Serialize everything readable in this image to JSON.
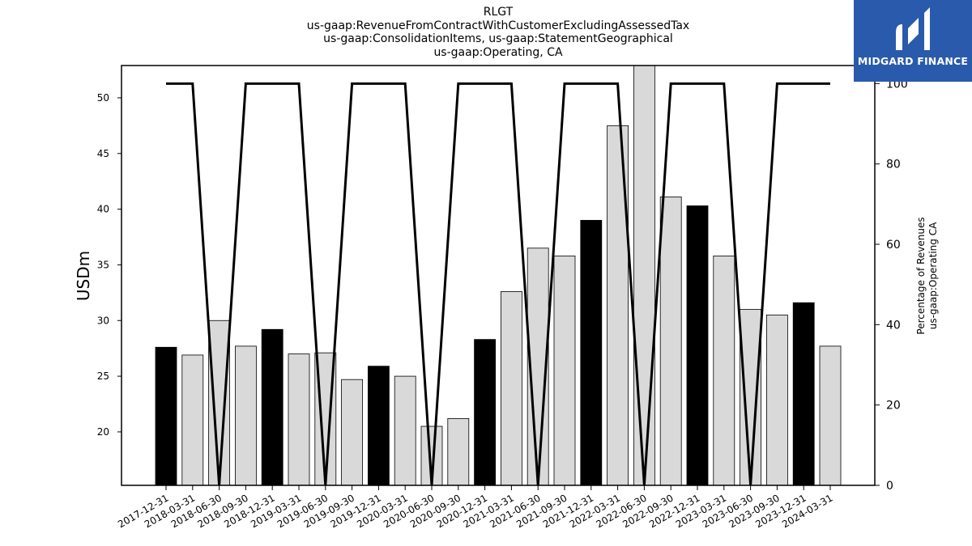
{
  "title": {
    "line1": "RLGT",
    "line2": "us-gaap:RevenueFromContractWithCustomerExcludingAssessedTax",
    "line3": "us-gaap:ConsolidationItems, us-gaap:StatementGeographical",
    "line4": "us-gaap:Operating, CA"
  },
  "logo": {
    "text": "MIDGARD FINANCE",
    "color": "#2a5aab"
  },
  "chart_data": {
    "type": "bar",
    "categories": [
      "2017-12-31",
      "2018-03-31",
      "2018-06-30",
      "2018-09-30",
      "2018-12-31",
      "2019-03-31",
      "2019-06-30",
      "2019-09-30",
      "2019-12-31",
      "2020-03-31",
      "2020-06-30",
      "2020-09-30",
      "2020-12-31",
      "2021-03-31",
      "2021-06-30",
      "2021-09-30",
      "2021-12-31",
      "2022-03-31",
      "2022-06-30",
      "2022-09-30",
      "2022-12-31",
      "2023-03-31",
      "2023-06-30",
      "2023-09-30",
      "2023-12-31",
      "2024-03-31"
    ],
    "values": [
      27.6,
      26.9,
      30.0,
      27.7,
      29.2,
      27.0,
      27.1,
      24.7,
      25.9,
      25.0,
      20.5,
      21.2,
      28.3,
      32.6,
      36.5,
      35.8,
      39.0,
      47.5,
      53.5,
      41.1,
      40.3,
      35.8,
      31.0,
      30.5,
      31.6,
      27.7
    ],
    "bar_colors": [
      "#000000",
      "#d9d9d9",
      "#d9d9d9",
      "#d9d9d9",
      "#000000",
      "#d9d9d9",
      "#d9d9d9",
      "#d9d9d9",
      "#000000",
      "#d9d9d9",
      "#d9d9d9",
      "#d9d9d9",
      "#000000",
      "#d9d9d9",
      "#d9d9d9",
      "#d9d9d9",
      "#000000",
      "#d9d9d9",
      "#d9d9d9",
      "#d9d9d9",
      "#000000",
      "#d9d9d9",
      "#d9d9d9",
      "#d9d9d9",
      "#000000",
      "#d9d9d9"
    ],
    "line_values": [
      100,
      100,
      0,
      100,
      100,
      100,
      0,
      100,
      100,
      100,
      0,
      100,
      100,
      100,
      0,
      100,
      100,
      100,
      0,
      100,
      100,
      100,
      0,
      100,
      100,
      100
    ],
    "ylabel": "USDm",
    "y2label_line1": "Percentage of Revenues",
    "y2label_line2": "us-gaap:Operating CA",
    "ylim": [
      15.2,
      52.9
    ],
    "y_ticks": [
      20,
      25,
      30,
      35,
      40,
      45,
      50
    ],
    "y2lim": [
      0,
      104.5
    ],
    "y2_ticks": [
      0,
      20,
      40,
      60,
      80,
      100
    ]
  }
}
